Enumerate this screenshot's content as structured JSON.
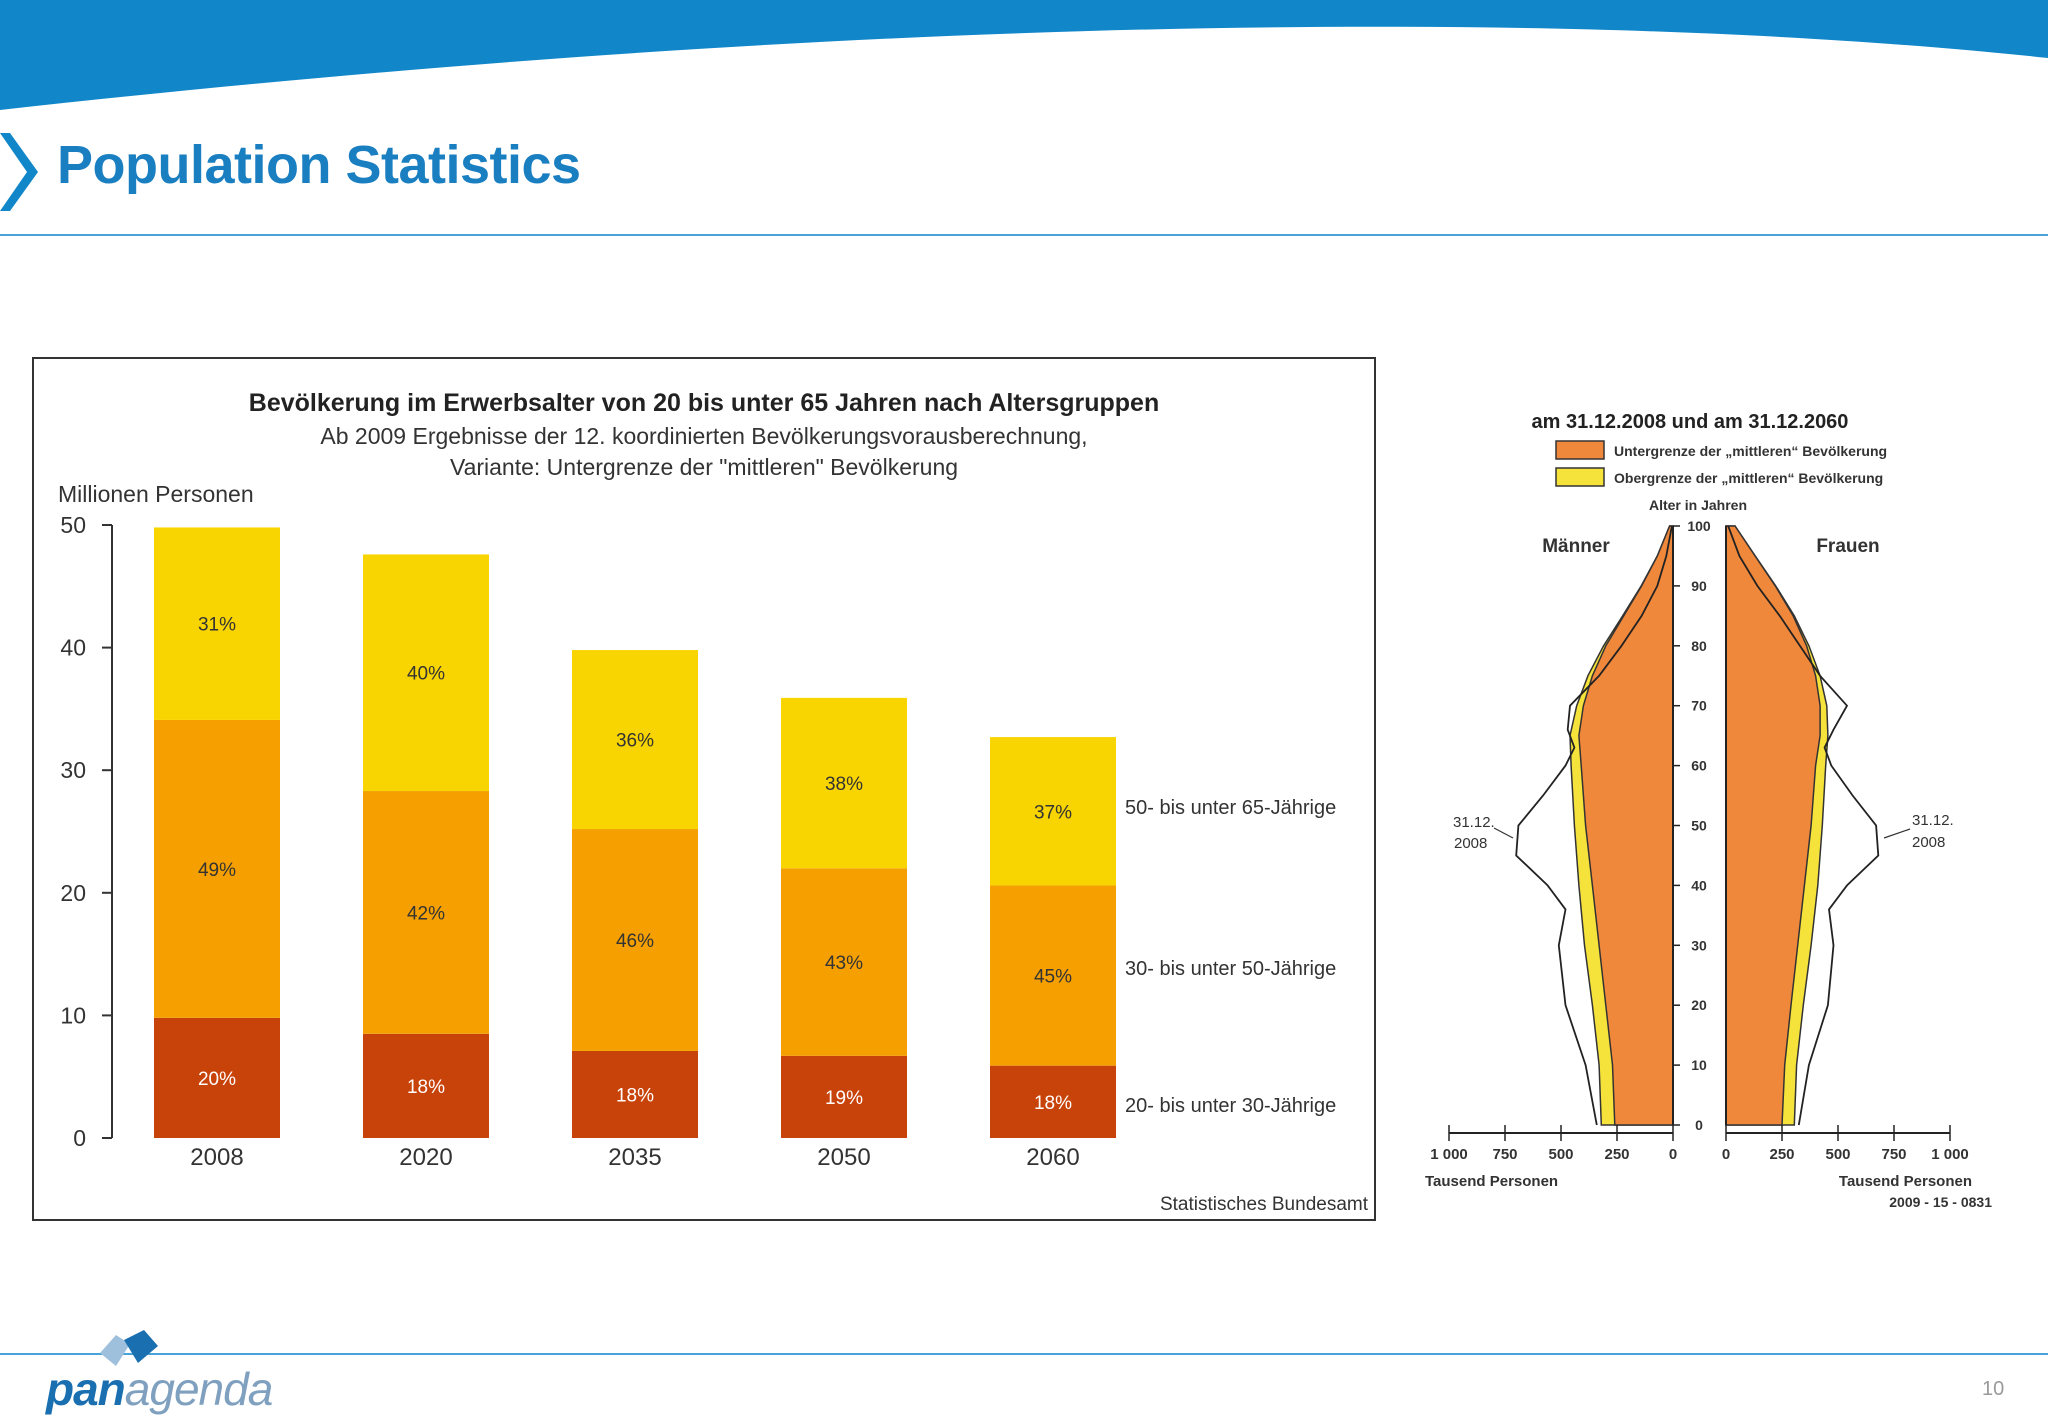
{
  "slide": {
    "title": "Population Statistics",
    "page_number": "10",
    "logo": {
      "part1": "pan",
      "part2": "agenda"
    },
    "colors": {
      "accent": "#1187c9",
      "title": "#1a7fc1",
      "line": "#4aa3d8"
    }
  },
  "chart_data": [
    {
      "type": "bar",
      "stacked": true,
      "title": "Bevölkerung im Erwerbsalter von 20 bis unter 65 Jahren nach Altersgruppen",
      "subtitle_line1": "Ab 2009 Ergebnisse der 12. koordinierten Bevölkerungsvorausberechnung,",
      "subtitle_line2": "Variante: Untergrenze der \"mittleren\" Bevölkerung",
      "ylabel": "Millionen Personen",
      "ylim": [
        0,
        50
      ],
      "yticks": [
        "0",
        "10",
        "20",
        "30",
        "40",
        "50"
      ],
      "categories": [
        "2008",
        "2020",
        "2035",
        "2050",
        "2060"
      ],
      "series": [
        {
          "name": "20- bis unter 30-Jährige",
          "color": "#c8430a",
          "values": [
            9.8,
            8.5,
            7.1,
            6.7,
            5.9
          ],
          "labels": [
            "20%",
            "18%",
            "18%",
            "19%",
            "18%"
          ]
        },
        {
          "name": "30- bis unter 50-Jährige",
          "color": "#f5a000",
          "values": [
            24.3,
            19.8,
            18.1,
            15.3,
            14.7
          ],
          "labels": [
            "49%",
            "42%",
            "46%",
            "43%",
            "45%"
          ]
        },
        {
          "name": "50- bis unter 65-Jährige",
          "color": "#f8d500",
          "values": [
            15.7,
            19.3,
            14.6,
            13.9,
            12.1
          ],
          "labels": [
            "31%",
            "40%",
            "36%",
            "38%",
            "37%"
          ]
        }
      ],
      "legend": [
        "50- bis unter 65-Jährige",
        "30- bis unter 50-Jährige",
        "20- bis unter 30-Jährige"
      ],
      "source": "Statistisches Bundesamt"
    },
    {
      "type": "area",
      "title": "am 31.12.2008 und am 31.12.2060",
      "legend": [
        {
          "label": "Untergrenze der „mittleren“ Bevölkerung",
          "color": "#f0883c"
        },
        {
          "label": "Obergrenze der „mittleren“ Bevölkerung",
          "color": "#f5e23a"
        }
      ],
      "age_axis_title": "Alter in Jahren",
      "age_ticks": [
        "0",
        "10",
        "20",
        "30",
        "40",
        "50",
        "60",
        "70",
        "80",
        "90",
        "100"
      ],
      "ylim": [
        0,
        100
      ],
      "xlim": [
        0,
        1000
      ],
      "left_label": "Männer",
      "right_label": "Frauen",
      "x_ticks_left": [
        "1 000",
        "750",
        "500",
        "250",
        "0"
      ],
      "x_ticks_right": [
        "0",
        "250",
        "500",
        "750",
        "1 000"
      ],
      "x_unit": "Tausend Personen",
      "annotation_line1": "31.12.",
      "annotation_line2": "2008",
      "code": "2009 - 15 - 0831",
      "men_2060_lower": [
        [
          0,
          260
        ],
        [
          10,
          270
        ],
        [
          20,
          300
        ],
        [
          30,
          330
        ],
        [
          40,
          360
        ],
        [
          50,
          390
        ],
        [
          60,
          410
        ],
        [
          65,
          420
        ],
        [
          70,
          400
        ],
        [
          75,
          360
        ],
        [
          80,
          300
        ],
        [
          85,
          220
        ],
        [
          90,
          140
        ],
        [
          95,
          70
        ],
        [
          100,
          15
        ]
      ],
      "men_2060_upper": [
        [
          0,
          320
        ],
        [
          10,
          330
        ],
        [
          20,
          360
        ],
        [
          30,
          395
        ],
        [
          40,
          420
        ],
        [
          50,
          440
        ],
        [
          60,
          455
        ],
        [
          65,
          460
        ],
        [
          70,
          430
        ],
        [
          75,
          380
        ],
        [
          80,
          310
        ],
        [
          85,
          225
        ],
        [
          90,
          142
        ],
        [
          95,
          70
        ],
        [
          100,
          15
        ]
      ],
      "men_2008": [
        [
          0,
          340
        ],
        [
          10,
          390
        ],
        [
          20,
          480
        ],
        [
          30,
          510
        ],
        [
          36,
          480
        ],
        [
          40,
          560
        ],
        [
          45,
          700
        ],
        [
          50,
          690
        ],
        [
          55,
          580
        ],
        [
          60,
          480
        ],
        [
          63,
          440
        ],
        [
          66,
          470
        ],
        [
          70,
          460
        ],
        [
          75,
          330
        ],
        [
          80,
          230
        ],
        [
          85,
          140
        ],
        [
          90,
          70
        ],
        [
          95,
          30
        ],
        [
          100,
          5
        ]
      ],
      "women_2060_lower": [
        [
          0,
          250
        ],
        [
          10,
          262
        ],
        [
          20,
          290
        ],
        [
          30,
          320
        ],
        [
          40,
          350
        ],
        [
          50,
          380
        ],
        [
          60,
          400
        ],
        [
          65,
          420
        ],
        [
          70,
          420
        ],
        [
          75,
          400
        ],
        [
          80,
          360
        ],
        [
          85,
          300
        ],
        [
          90,
          220
        ],
        [
          95,
          130
        ],
        [
          100,
          40
        ]
      ],
      "women_2060_upper": [
        [
          0,
          305
        ],
        [
          10,
          315
        ],
        [
          20,
          345
        ],
        [
          30,
          380
        ],
        [
          40,
          410
        ],
        [
          50,
          430
        ],
        [
          60,
          445
        ],
        [
          65,
          455
        ],
        [
          70,
          450
        ],
        [
          75,
          420
        ],
        [
          80,
          370
        ],
        [
          85,
          305
        ],
        [
          90,
          222
        ],
        [
          95,
          131
        ],
        [
          100,
          40
        ]
      ],
      "women_2008": [
        [
          0,
          325
        ],
        [
          10,
          370
        ],
        [
          20,
          455
        ],
        [
          30,
          480
        ],
        [
          36,
          460
        ],
        [
          40,
          540
        ],
        [
          45,
          680
        ],
        [
          50,
          670
        ],
        [
          55,
          565
        ],
        [
          60,
          470
        ],
        [
          63,
          440
        ],
        [
          66,
          480
        ],
        [
          70,
          540
        ],
        [
          75,
          420
        ],
        [
          80,
          330
        ],
        [
          85,
          240
        ],
        [
          90,
          140
        ],
        [
          95,
          60
        ],
        [
          100,
          10
        ]
      ]
    }
  ]
}
